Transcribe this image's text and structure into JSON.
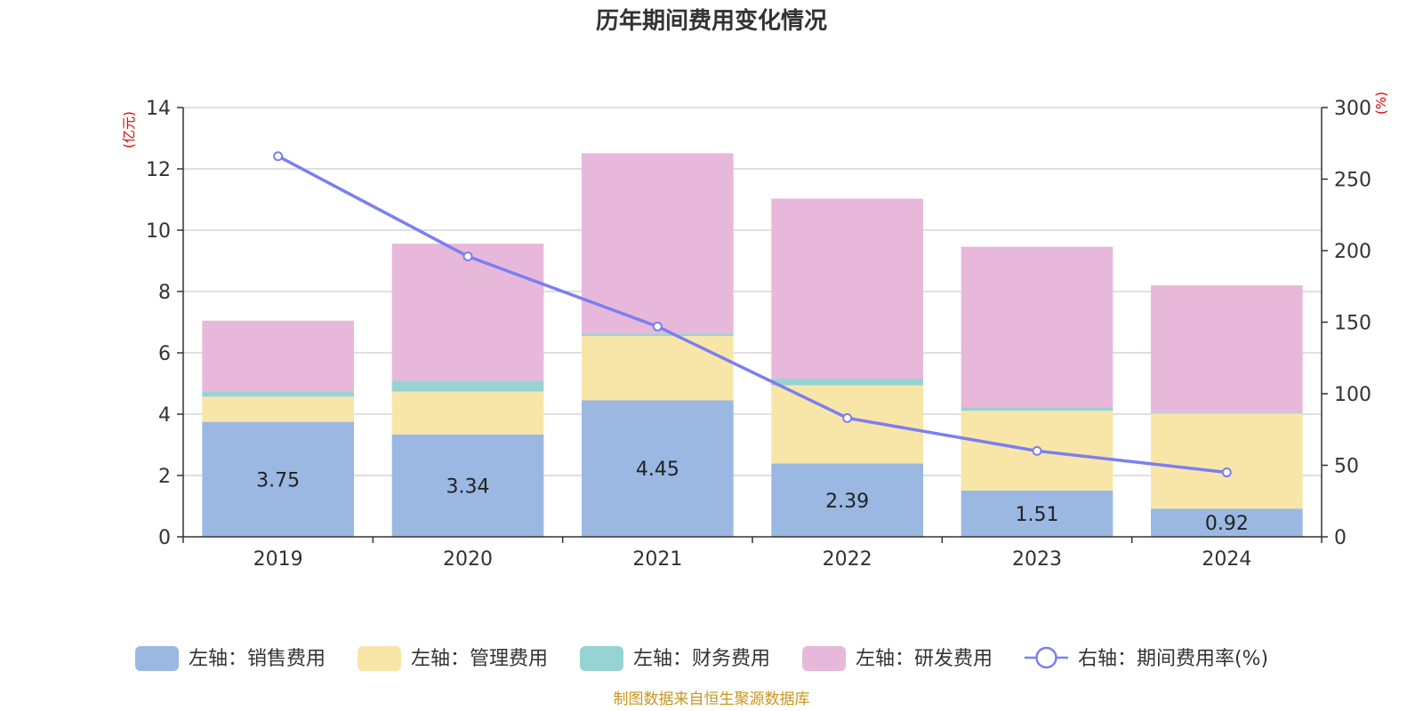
{
  "chart_data": {
    "type": "bar",
    "title": "历年期间费用变化情况",
    "categories": [
      "2019",
      "2020",
      "2021",
      "2022",
      "2023",
      "2024"
    ],
    "left_axis_unit": "(亿元)",
    "right_axis_unit": "(%)",
    "ylim": [
      0,
      14
    ],
    "y_ticks": [
      0,
      2,
      4,
      6,
      8,
      10,
      12,
      14
    ],
    "y2lim": [
      0,
      300
    ],
    "y2_ticks": [
      0,
      50,
      100,
      150,
      200,
      250,
      300
    ],
    "stacked": true,
    "grid": true,
    "legend_position": "bottom",
    "series": [
      {
        "name": "左轴：销售费用",
        "type": "bar",
        "axis": "left",
        "color": "#9bb8e2",
        "values": [
          3.75,
          3.34,
          4.45,
          2.39,
          1.51,
          0.92
        ],
        "labels": [
          "3.75",
          "3.34",
          "4.45",
          "2.39",
          "1.51",
          "0.92"
        ]
      },
      {
        "name": "左轴：管理费用",
        "type": "bar",
        "axis": "left",
        "color": "#f8e6a8",
        "values": [
          0.82,
          1.4,
          2.1,
          2.55,
          2.6,
          3.1
        ]
      },
      {
        "name": "左轴：财务费用",
        "type": "bar",
        "axis": "left",
        "color": "#96d4d4",
        "values": [
          0.18,
          0.35,
          0.07,
          0.22,
          0.12,
          0.03
        ]
      },
      {
        "name": "左轴：研发费用",
        "type": "bar",
        "axis": "left",
        "color": "#e8b8da",
        "values": [
          2.3,
          4.47,
          5.89,
          5.87,
          5.23,
          4.15
        ]
      },
      {
        "name": "右轴：期间费用率(%)",
        "type": "line",
        "axis": "right",
        "color": "#7b7ff0",
        "values": [
          266,
          196,
          147,
          83,
          60,
          45
        ]
      }
    ],
    "source": "制图数据来自恒生聚源数据库"
  }
}
